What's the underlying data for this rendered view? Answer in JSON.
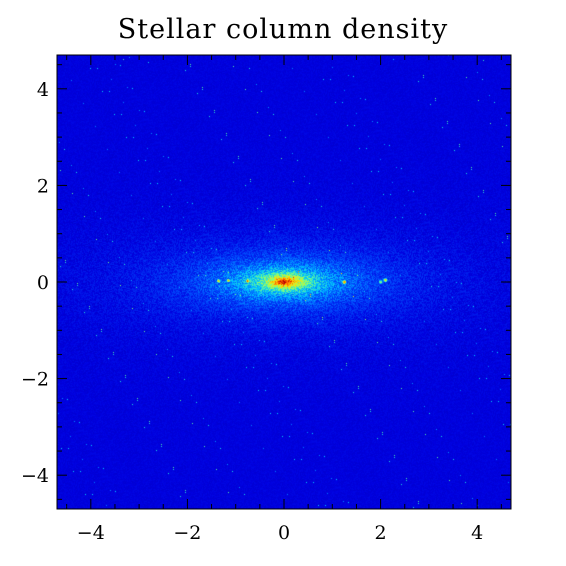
{
  "chart_data": {
    "type": "heatmap",
    "title": "Stellar column density",
    "xlabel": "",
    "ylabel": "",
    "xlim": [
      -4.7,
      4.7
    ],
    "ylim": [
      -4.7,
      4.7
    ],
    "x_ticks": [
      -4,
      -2,
      0,
      2,
      4
    ],
    "y_ticks": [
      -4,
      -2,
      0,
      2,
      4
    ],
    "x_tick_labels": [
      "−4",
      "−2",
      "0",
      "2",
      "4"
    ],
    "y_tick_labels": [
      "−4",
      "−2",
      "0",
      "2",
      "4"
    ],
    "colormap": [
      "#00007f",
      "#0000e0",
      "#0050ff",
      "#00c8ff",
      "#7dff80",
      "#ffe600",
      "#ff5a00",
      "#b40000"
    ],
    "background_color": "#0000c8",
    "disk": {
      "center": [
        0,
        0
      ],
      "radial_scale": 1.45,
      "vertical_scale": 0.42
    },
    "bulge": {
      "center": [
        0,
        0
      ],
      "radial_scale": 0.35,
      "vertical_scale": 0.14
    },
    "clumps": [
      {
        "x": -1.35,
        "y": 0.02,
        "level": 0.75
      },
      {
        "x": -1.15,
        "y": 0.03,
        "level": 0.7
      },
      {
        "x": -0.75,
        "y": 0.02,
        "level": 0.85
      },
      {
        "x": 0.5,
        "y": 0.02,
        "level": 0.6
      },
      {
        "x": 1.25,
        "y": 0.0,
        "level": 0.85
      },
      {
        "x": 2.1,
        "y": 0.04,
        "level": 0.75
      },
      {
        "x": 2.0,
        "y": 0.0,
        "level": 0.6
      }
    ],
    "grid": false,
    "legend": "none"
  }
}
